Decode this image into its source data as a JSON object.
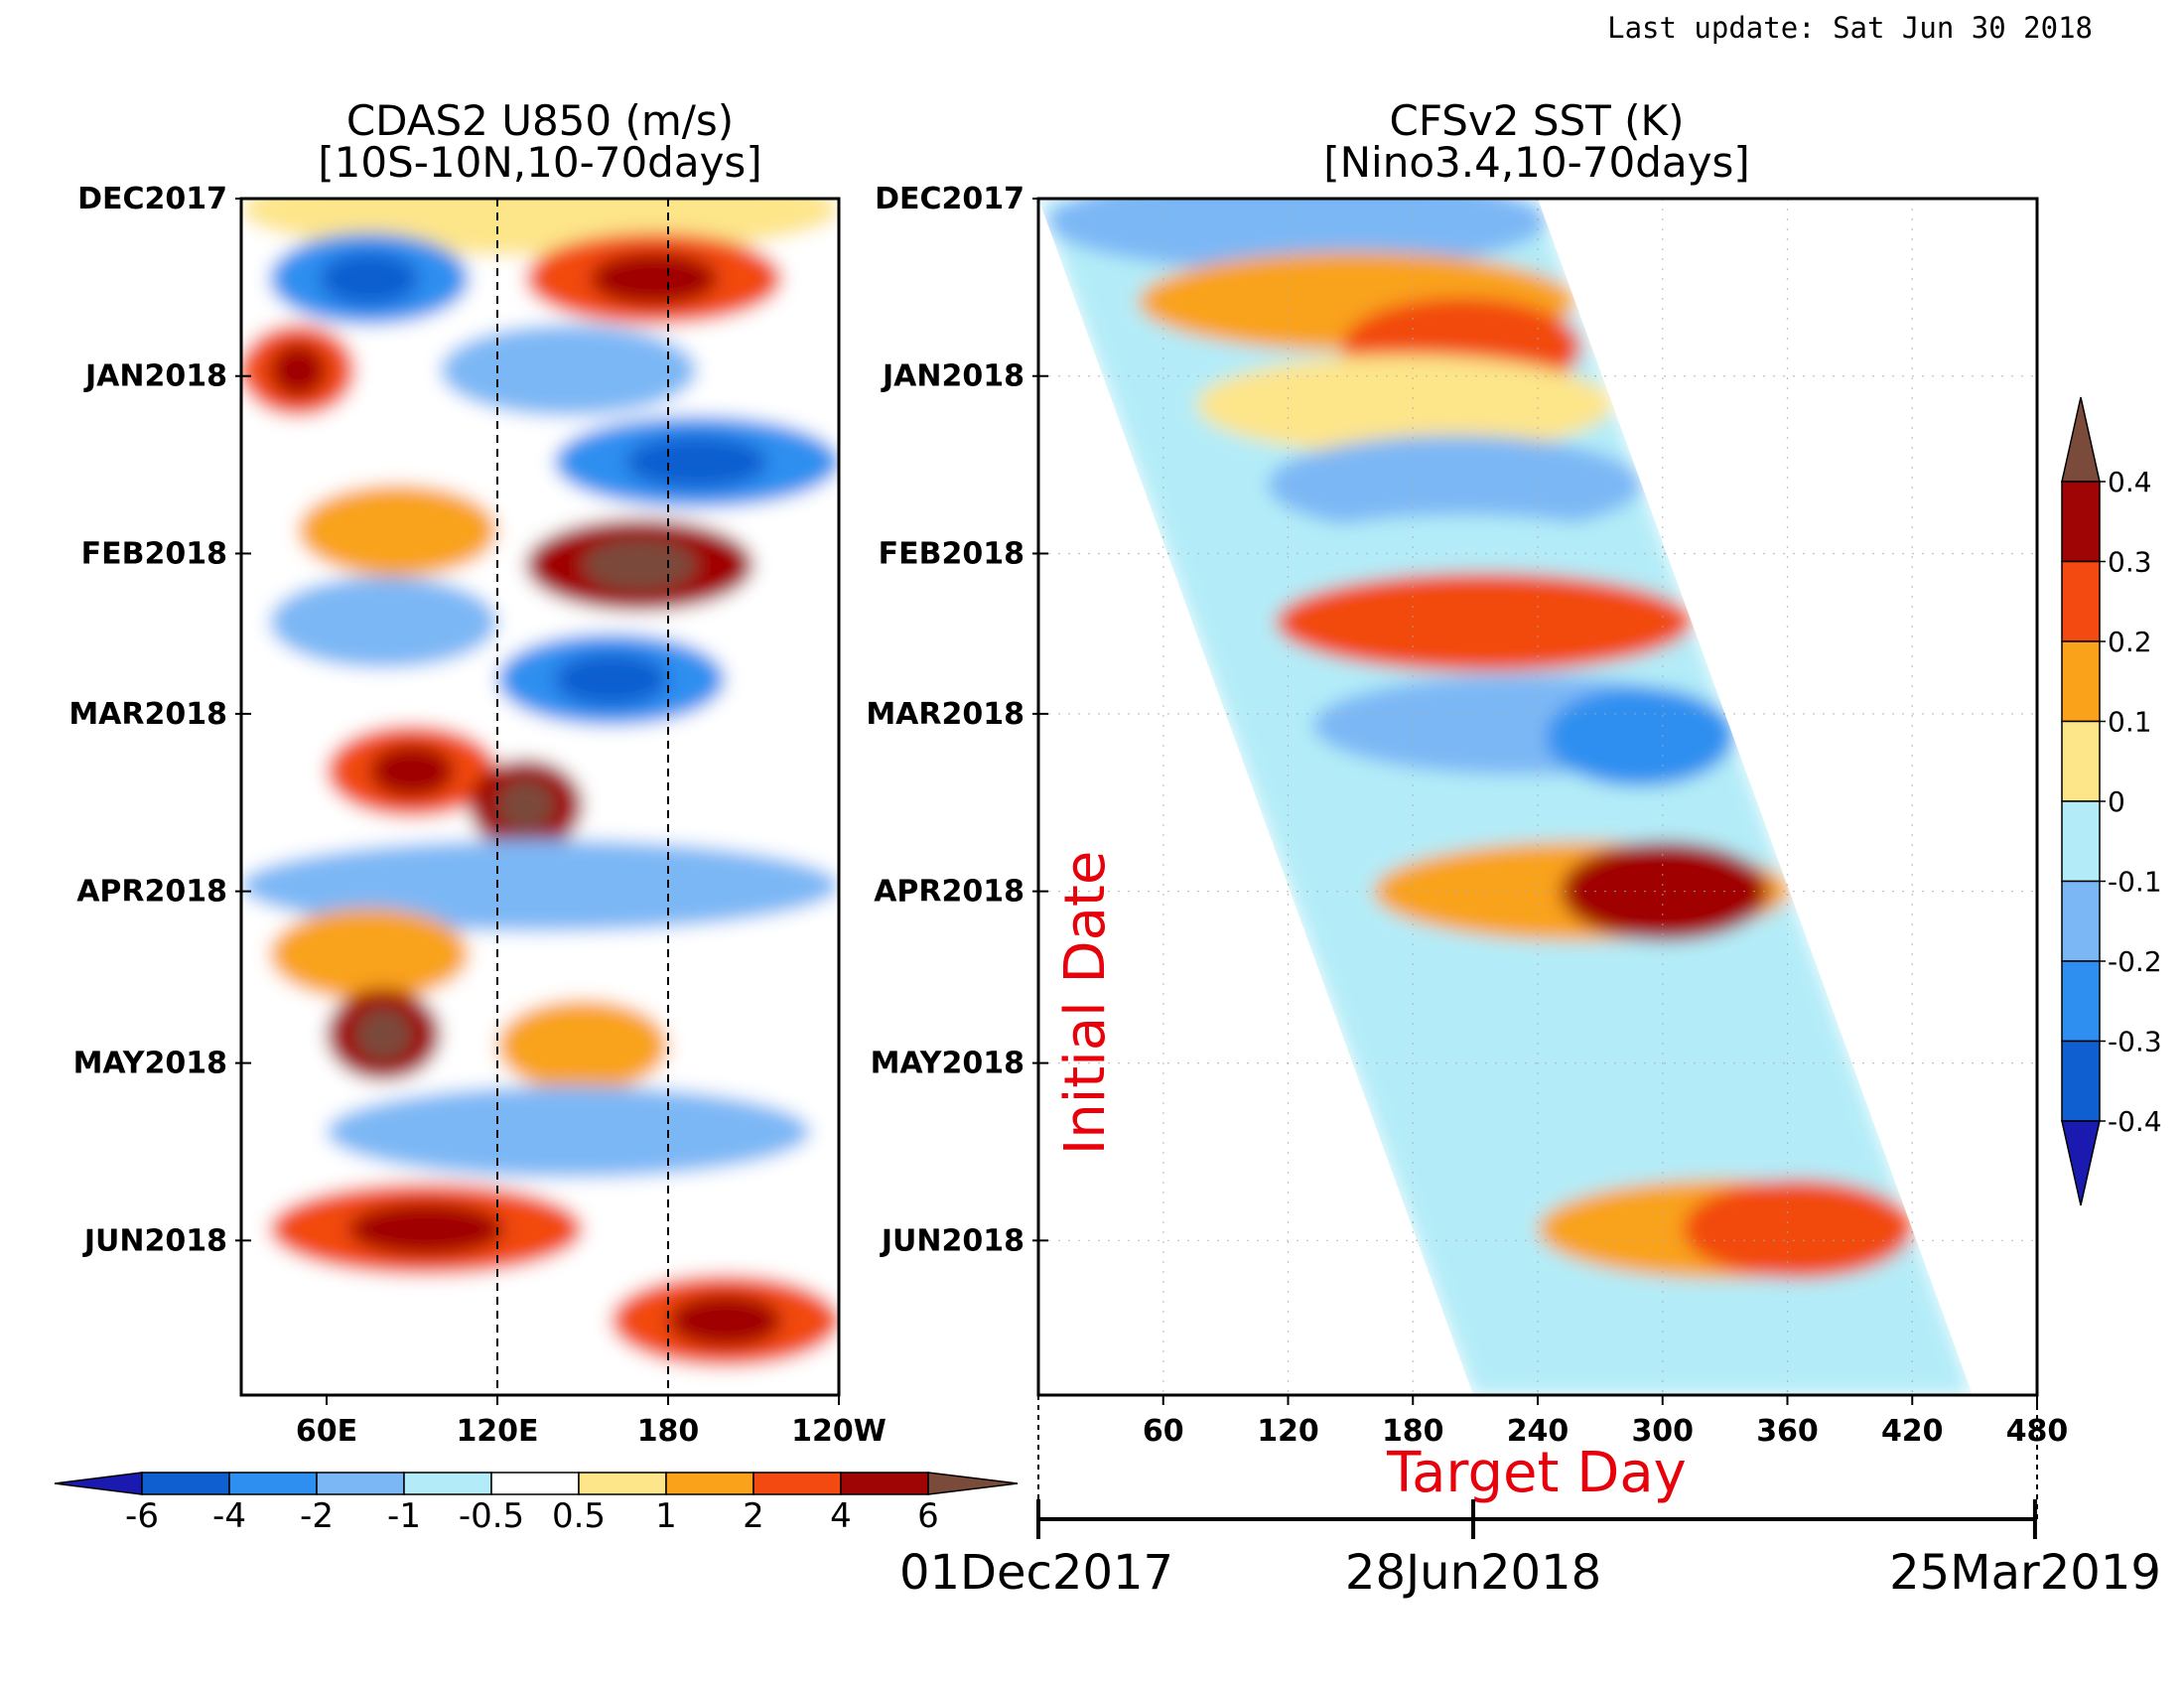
{
  "last_update": "Last update: Sat Jun 30 2018",
  "chart_data": [
    {
      "type": "heatmap",
      "title": "CDAS2 U850 (m/s)",
      "subtitle": "[10S-10N,10-70days]",
      "x_tick_labels": [
        "60E",
        "120E",
        "180",
        "120W"
      ],
      "x_ticks_lon": [
        60,
        120,
        180,
        240
      ],
      "xlim_lon": [
        30,
        240
      ],
      "y_tick_labels": [
        "DEC2017",
        "JAN2018",
        "FEB2018",
        "MAR2018",
        "APR2018",
        "MAY2018",
        "JUN2018"
      ],
      "y_ticks_day": [
        0,
        31,
        62,
        90,
        121,
        151,
        182
      ],
      "ylim_day": [
        0,
        209
      ],
      "reference_lines_lon": [
        120,
        180
      ],
      "colorbar": {
        "levels": [
          "-6",
          "-4",
          "-2",
          "-1",
          "-0.5",
          "0.5",
          "1",
          "2",
          "4",
          "6"
        ],
        "colors": [
          "#1a1ab0",
          "#0f5fd0",
          "#2e8ff0",
          "#7cb7f5",
          "#b3ecf8",
          "#ffffff",
          "#fde58a",
          "#f9a21a",
          "#f24a10",
          "#a00505",
          "#7a4a3a"
        ]
      },
      "bands": [
        {
          "day": 2,
          "from": 30,
          "to": 240,
          "level": 1
        },
        {
          "day": 14,
          "from": 40,
          "to": 110,
          "level": -3
        },
        {
          "day": 14,
          "from": 130,
          "to": 220,
          "level": 3
        },
        {
          "day": 30,
          "from": 30,
          "to": 70,
          "level": 3
        },
        {
          "day": 30,
          "from": 100,
          "to": 190,
          "level": -2
        },
        {
          "day": 46,
          "from": 30,
          "to": 90,
          "level": 0
        },
        {
          "day": 46,
          "from": 140,
          "to": 240,
          "level": -3
        },
        {
          "day": 58,
          "from": 50,
          "to": 120,
          "level": 2
        },
        {
          "day": 64,
          "from": 130,
          "to": 210,
          "level": 4
        },
        {
          "day": 74,
          "from": 40,
          "to": 120,
          "level": -2
        },
        {
          "day": 84,
          "from": 120,
          "to": 200,
          "level": -3
        },
        {
          "day": 100,
          "from": 60,
          "to": 120,
          "level": 3
        },
        {
          "day": 106,
          "from": 110,
          "to": 150,
          "level": 4
        },
        {
          "day": 120,
          "from": 30,
          "to": 240,
          "level": -2
        },
        {
          "day": 132,
          "from": 40,
          "to": 110,
          "level": 2
        },
        {
          "day": 146,
          "from": 60,
          "to": 100,
          "level": 4
        },
        {
          "day": 148,
          "from": 120,
          "to": 180,
          "level": 2
        },
        {
          "day": 163,
          "from": 60,
          "to": 230,
          "level": -2
        },
        {
          "day": 180,
          "from": 40,
          "to": 150,
          "level": 3
        },
        {
          "day": 196,
          "from": 160,
          "to": 240,
          "level": 3
        }
      ]
    },
    {
      "type": "heatmap",
      "title": "CFSv2 SST (K)",
      "subtitle": "[Nino3.4,10-70days]",
      "x_tick_labels": [
        "60",
        "120",
        "180",
        "240",
        "300",
        "360",
        "420",
        "480"
      ],
      "x_ticks": [
        60,
        120,
        180,
        240,
        300,
        360,
        420,
        480
      ],
      "xlim": [
        0,
        480
      ],
      "y_tick_labels": [
        "DEC2017",
        "JAN2018",
        "FEB2018",
        "MAR2018",
        "APR2018",
        "MAY2018",
        "JUN2018"
      ],
      "y_ticks_day": [
        0,
        31,
        62,
        90,
        121,
        151,
        182
      ],
      "ylim_day": [
        0,
        209
      ],
      "y_annotation": "Initial Date",
      "x_annotation": "Target Day",
      "date_axis": {
        "labels": [
          "01Dec2017",
          "28Jun2018",
          "25Mar2019"
        ],
        "target_days": [
          0,
          209,
          479
        ]
      },
      "colorbar": {
        "labels": [
          "0.4",
          "0.3",
          "0.2",
          "0.1",
          "0",
          "-0.1",
          "-0.2",
          "-0.3",
          "-0.4"
        ],
        "colors": [
          "#7a4a3a",
          "#a00505",
          "#f24a10",
          "#f9a21a",
          "#fde58a",
          "#b3ecf8",
          "#7cb7f5",
          "#2e8ff0",
          "#0f5fd0",
          "#1a1ab0"
        ]
      },
      "bands": [
        {
          "day": 4,
          "rel_from": 0,
          "rel_to": 240,
          "level": -2
        },
        {
          "day": 18,
          "rel_from": 30,
          "rel_to": 240,
          "level": 2
        },
        {
          "day": 26,
          "rel_from": 120,
          "rel_to": 235,
          "level": 3
        },
        {
          "day": 36,
          "rel_from": 40,
          "rel_to": 240,
          "level": 1
        },
        {
          "day": 50,
          "rel_from": 60,
          "rel_to": 240,
          "level": -2
        },
        {
          "day": 64,
          "rel_from": 40,
          "rel_to": 240,
          "level": -1
        },
        {
          "day": 74,
          "rel_from": 40,
          "rel_to": 240,
          "level": 3
        },
        {
          "day": 92,
          "rel_from": 40,
          "rel_to": 240,
          "level": -2
        },
        {
          "day": 94,
          "rel_from": 150,
          "rel_to": 240,
          "level": -3
        },
        {
          "day": 121,
          "rel_from": 40,
          "rel_to": 240,
          "level": 2
        },
        {
          "day": 121,
          "rel_from": 130,
          "rel_to": 230,
          "level": 4
        },
        {
          "day": 148,
          "rel_from": 60,
          "rel_to": 240,
          "level": -1
        },
        {
          "day": 180,
          "rel_from": 60,
          "rel_to": 240,
          "level": 2
        },
        {
          "day": 180,
          "rel_from": 130,
          "rel_to": 240,
          "level": 3
        },
        {
          "day": 200,
          "rel_from": 60,
          "rel_to": 240,
          "level": -1
        }
      ]
    }
  ]
}
